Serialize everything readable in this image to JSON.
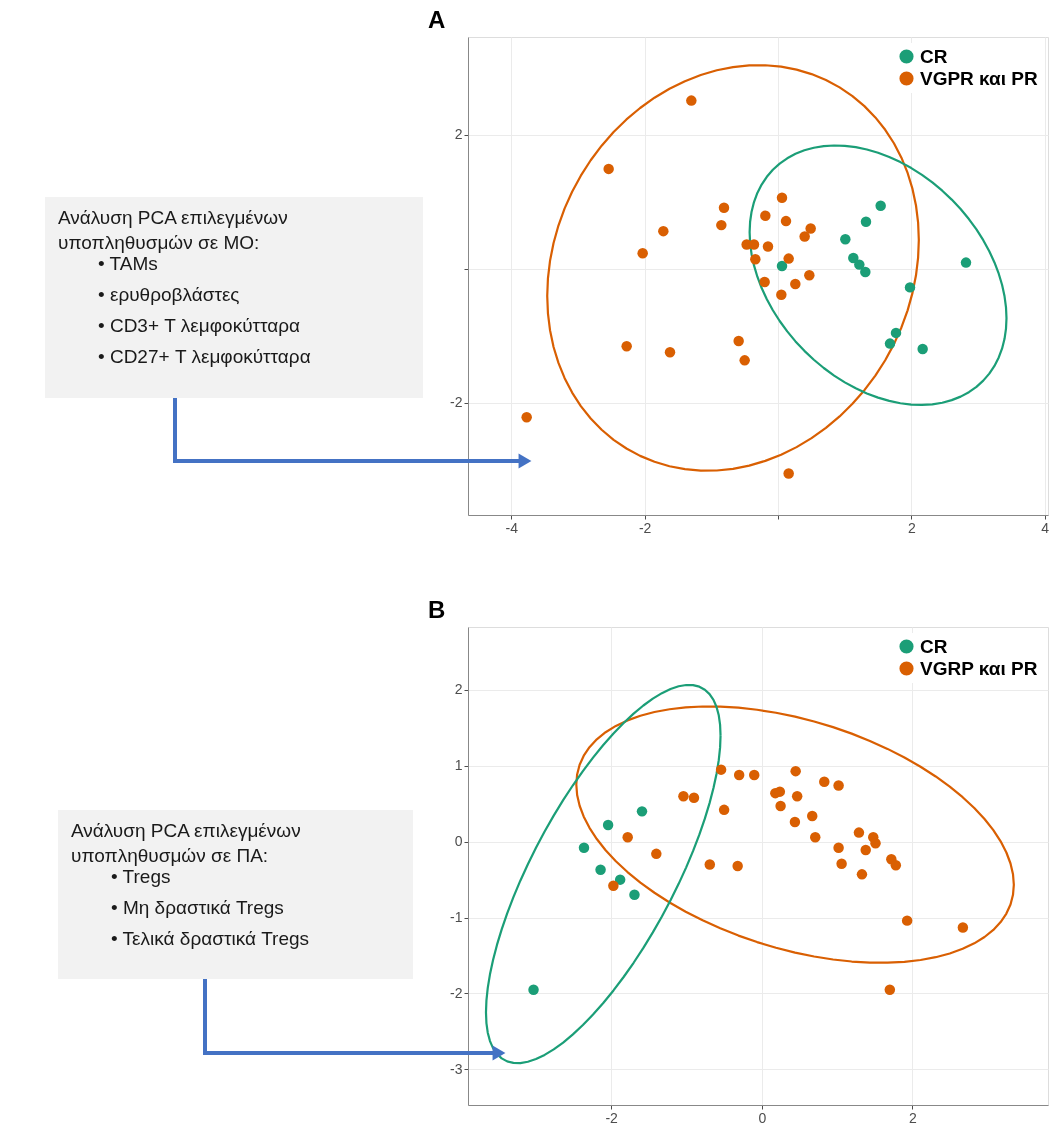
{
  "chart_data": [
    {
      "type": "scatter",
      "title": "A",
      "xlim": [
        -4.65,
        4.05
      ],
      "ylim": [
        -3.68,
        3.46
      ],
      "xticks": [
        -4,
        -2,
        {
          "value": 0,
          "label": null
        },
        2,
        4
      ],
      "yticks": [
        -2,
        {
          "value": 0,
          "label": null
        },
        2
      ],
      "grid": true,
      "legend": "top right",
      "marker": "circle",
      "annotations": [
        "Ανάλυση PCA επιλεγμένων\nυποπληθυσμών σε ΜΟ:",
        "• TAMs",
        "• ερυθροβλάστες",
        "• CD3+ Τ λεμφοκύτταρα",
        "• CD27+ Τ λεμφοκύτταρα"
      ],
      "series": [
        {
          "name": "CR",
          "color": "#1b9e77",
          "x": [
            0.06,
            1.01,
            1.32,
            1.54,
            1.13,
            1.22,
            1.31,
            2.82,
            1.98,
            1.77,
            1.68,
            2.17
          ],
          "values": [
            0.04,
            0.44,
            0.7,
            0.94,
            0.16,
            0.06,
            -0.05,
            0.09,
            -0.28,
            -0.96,
            -1.12,
            -1.2
          ]
        },
        {
          "name": "VGPR και PR",
          "color": "#d95f02",
          "x": [
            -1.3,
            -2.54,
            0.06,
            -0.81,
            -0.85,
            -0.19,
            0.12,
            -1.72,
            0.49,
            0.4,
            -0.47,
            -0.36,
            -0.15,
            -2.03,
            -0.34,
            0.16,
            0.47,
            -0.2,
            0.26,
            0.05,
            -2.27,
            -1.62,
            -0.59,
            -0.5,
            -3.77,
            0.16
          ],
          "values": [
            2.51,
            1.49,
            1.06,
            0.91,
            0.65,
            0.79,
            0.71,
            0.56,
            0.6,
            0.48,
            0.36,
            0.36,
            0.33,
            0.23,
            0.14,
            0.15,
            -0.1,
            -0.2,
            -0.23,
            -0.39,
            -1.16,
            -1.25,
            -1.08,
            -1.37,
            -2.22,
            -3.06
          ]
        }
      ]
    },
    {
      "type": "scatter",
      "title": "B",
      "xlim": [
        -3.9,
        3.8
      ],
      "ylim": [
        -3.47,
        2.83
      ],
      "xticks": [
        -2,
        0,
        2
      ],
      "yticks": [
        -3,
        -2,
        -1,
        0,
        1,
        2
      ],
      "grid": true,
      "legend": "top right",
      "marker": "circle",
      "annotations": [
        "Ανάλυση PCA επιλεγμένων\nυποπληθυσμών σε ΠΑ:",
        "• Tregs",
        "• Μη δραστικά Tregs",
        "• Τελικά δραστικά Tregs"
      ],
      "series": [
        {
          "name": "CR",
          "color": "#1b9e77",
          "x": [
            -3.03,
            -2.36,
            -2.14,
            -2.04,
            -1.59,
            -1.88,
            -1.69
          ],
          "values": [
            -1.95,
            -0.08,
            -0.37,
            0.22,
            0.4,
            -0.5,
            -0.7
          ]
        },
        {
          "name": "VGRP και PR",
          "color": "#d95f02",
          "x": [
            -1.78,
            -1.4,
            -1.97,
            -1.04,
            -0.9,
            -0.69,
            -0.54,
            -0.5,
            -0.32,
            -0.3,
            -0.1,
            0.18,
            0.24,
            0.25,
            0.45,
            0.47,
            0.44,
            0.67,
            0.71,
            0.83,
            1.02,
            1.02,
            1.06,
            1.29,
            1.48,
            1.51,
            1.38,
            1.33,
            1.72,
            1.78,
            1.93,
            2.67,
            1.7
          ],
          "values": [
            0.06,
            -0.16,
            -0.58,
            0.6,
            0.58,
            -0.3,
            0.95,
            0.42,
            -0.32,
            0.88,
            0.88,
            0.64,
            0.66,
            0.47,
            0.93,
            0.6,
            0.26,
            0.34,
            0.06,
            0.79,
            0.74,
            -0.08,
            -0.29,
            0.12,
            0.06,
            -0.02,
            -0.11,
            -0.43,
            -0.23,
            -0.31,
            -1.04,
            -1.13,
            -1.95
          ]
        }
      ]
    }
  ]
}
